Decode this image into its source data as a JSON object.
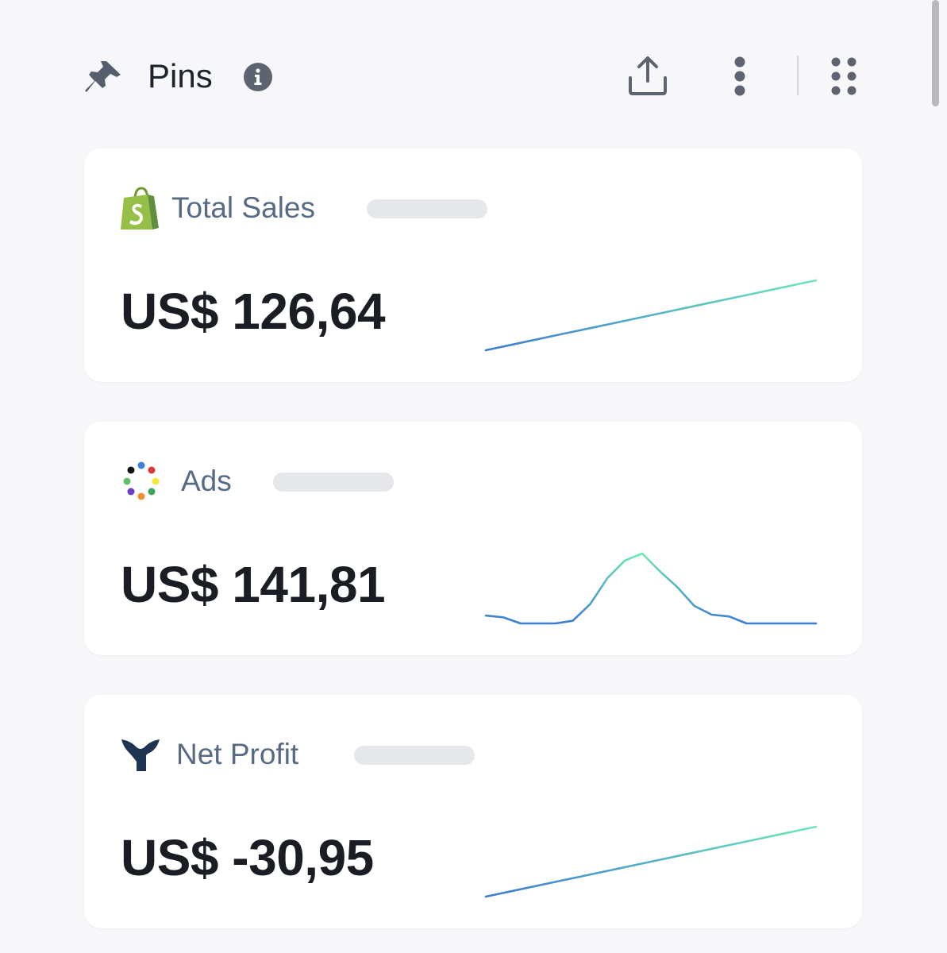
{
  "header": {
    "title": "Pins",
    "icons": {
      "pin": "pin-icon",
      "info": "info-icon",
      "share": "share-upload-icon",
      "more": "vertical-dots-icon",
      "grid": "grid-dots-icon"
    }
  },
  "cards": [
    {
      "label": "Total Sales",
      "value": "US$ 126,64",
      "icon": "shopify-bag-icon",
      "sparkline": [
        0.1,
        0.2,
        0.3,
        0.4,
        0.5,
        0.6,
        0.7,
        0.8,
        0.9,
        1.0
      ]
    },
    {
      "label": "Ads",
      "value": "US$ 141,81",
      "icon": "ads-dots-icon",
      "sparkline": [
        0.09,
        0.07,
        0.0,
        0.0,
        0.0,
        0.03,
        0.22,
        0.52,
        0.72,
        0.8,
        0.6,
        0.42,
        0.2,
        0.1,
        0.08,
        0.0,
        0.0,
        0.0,
        0.0,
        0.0
      ]
    },
    {
      "label": "Net Profit",
      "value": "US$ -30,95",
      "icon": "triple-whale-logo-icon",
      "sparkline": [
        0.0,
        0.1,
        0.2,
        0.3,
        0.4,
        0.5,
        0.6,
        0.7,
        0.8,
        0.9,
        1.0
      ]
    }
  ],
  "colors": {
    "line_start": "#3e7bd3",
    "line_end": "#6ee8b6",
    "background": "#f7f7fa",
    "card": "#ffffff",
    "label": "#566a85",
    "value": "#1a1d23"
  }
}
